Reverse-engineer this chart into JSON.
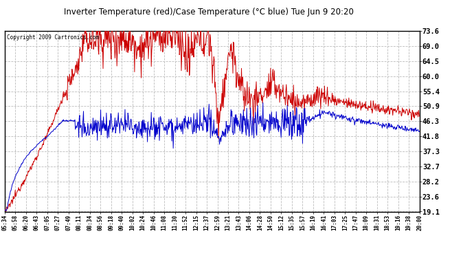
{
  "title": "Inverter Temperature (red)/Case Temperature (°C blue) Tue Jun 9 20:20",
  "copyright": "Copyright 2009 Cartronics.com",
  "yticks": [
    19.1,
    23.6,
    28.2,
    32.7,
    37.3,
    41.8,
    46.3,
    50.9,
    55.4,
    60.0,
    64.5,
    69.0,
    73.6
  ],
  "ymin": 19.1,
  "ymax": 73.6,
  "red_color": "#cc0000",
  "blue_color": "#0000cc",
  "background_color": "#ffffff",
  "grid_color": "#bbbbbb",
  "xtick_labels": [
    "05:34",
    "05:58",
    "06:20",
    "06:43",
    "07:05",
    "07:27",
    "07:49",
    "08:11",
    "08:34",
    "08:56",
    "09:18",
    "09:40",
    "10:02",
    "10:24",
    "10:46",
    "11:08",
    "11:30",
    "11:52",
    "12:15",
    "12:37",
    "12:59",
    "13:21",
    "13:43",
    "14:06",
    "14:28",
    "14:50",
    "15:12",
    "15:35",
    "15:57",
    "16:19",
    "16:41",
    "17:03",
    "17:25",
    "17:47",
    "18:09",
    "18:31",
    "18:53",
    "19:16",
    "19:38",
    "20:00"
  ]
}
